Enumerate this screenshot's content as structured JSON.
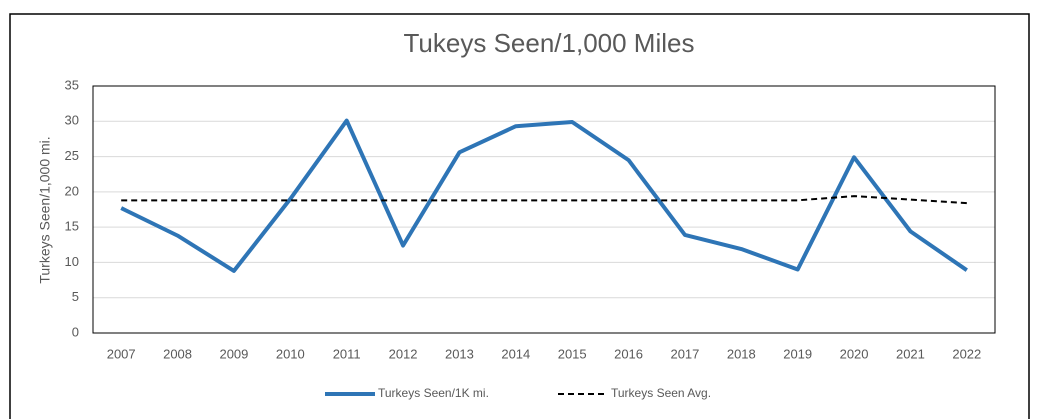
{
  "chart_data": {
    "type": "line",
    "title": "Tukeys Seen/1,000 Miles",
    "y_label": "Turkeys Seen/1,000 mi.",
    "categories": [
      "2007",
      "2008",
      "2009",
      "2010",
      "2011",
      "2012",
      "2013",
      "2014",
      "2015",
      "2016",
      "2017",
      "2018",
      "2019",
      "2020",
      "2021",
      "2022"
    ],
    "series": [
      {
        "name": "Turkeys Seen/1K mi.",
        "color": "#2e75b6",
        "dashed": false,
        "values": [
          17.7,
          13.8,
          8.8,
          19.0,
          30.1,
          12.4,
          25.6,
          29.3,
          29.9,
          24.5,
          13.9,
          11.9,
          9.0,
          24.9,
          14.4,
          8.9
        ]
      },
      {
        "name": "Turkeys Seen Avg.",
        "color": "#000000",
        "dashed": true,
        "values": [
          18.8,
          18.8,
          18.8,
          18.8,
          18.8,
          18.8,
          18.8,
          18.8,
          18.8,
          18.8,
          18.8,
          18.8,
          18.8,
          19.4,
          18.9,
          18.4
        ]
      }
    ],
    "ylim": [
      0,
      35
    ],
    "yticks": [
      0,
      5,
      10,
      15,
      20,
      25,
      30,
      35
    ],
    "grid": true,
    "legend": "bottom"
  }
}
